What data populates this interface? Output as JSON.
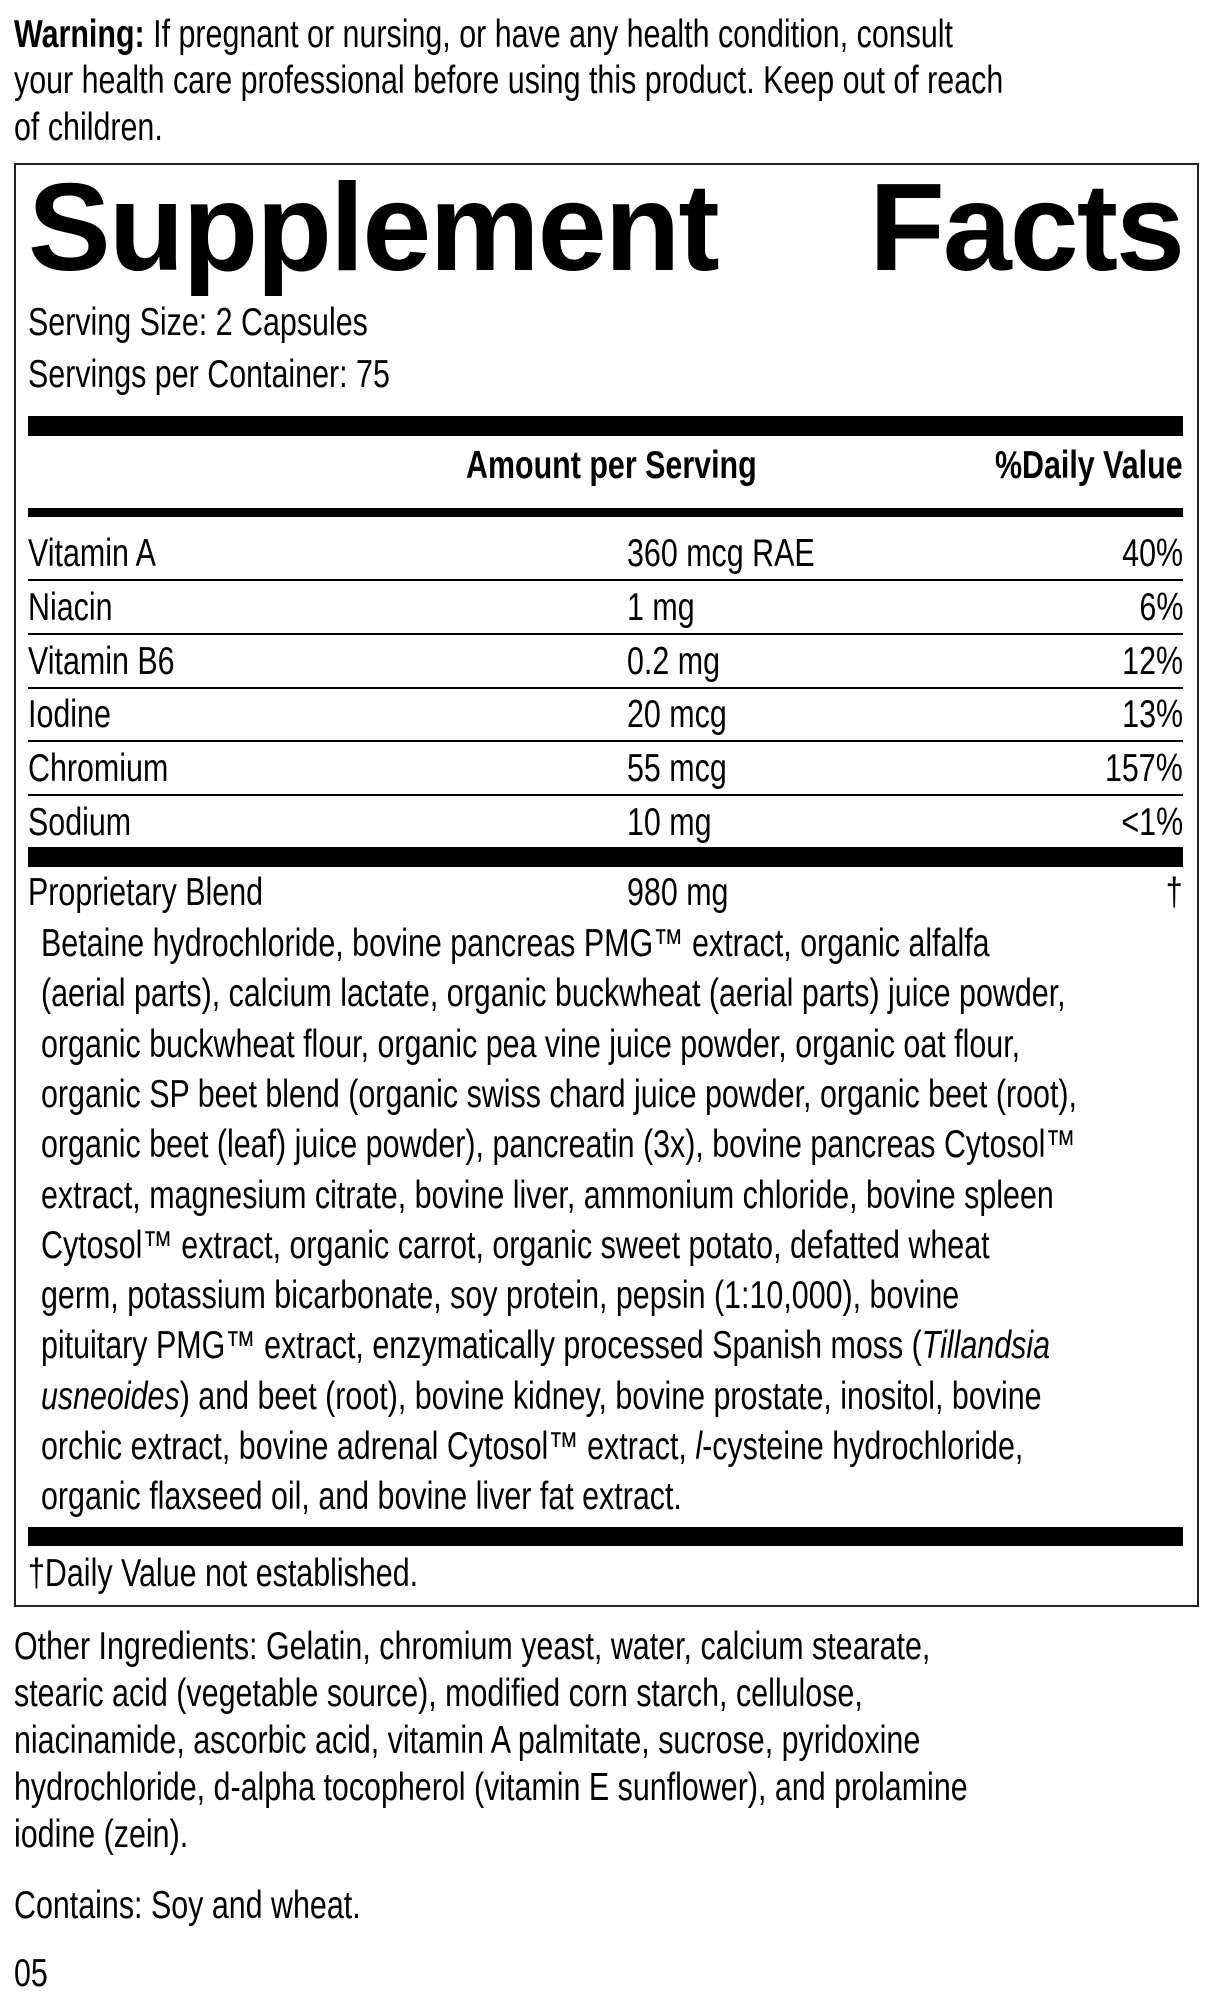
{
  "warning": {
    "label": "Warning:",
    "lines": [
      " If pregnant or nursing, or have any health condition, consult",
      "your health care professional before using this product. Keep out of reach",
      "of children."
    ]
  },
  "facts": {
    "title_left": "Supplement",
    "title_right": "Facts",
    "serving_size": "Serving Size: 2 Capsules",
    "servings_per_container": "Servings per Container: 75",
    "header_amount": "Amount per Serving",
    "header_dv": "%Daily Value",
    "rows": [
      {
        "name": "Vitamin A",
        "amount": "360 mcg RAE",
        "dv": "40%"
      },
      {
        "name": "Niacin",
        "amount": "1 mg",
        "dv": "6%"
      },
      {
        "name": "Vitamin B6",
        "amount": "0.2 mg",
        "dv": "12%"
      },
      {
        "name": "Iodine",
        "amount": "20 mcg",
        "dv": "13%"
      },
      {
        "name": "Chromium",
        "amount": "55 mcg",
        "dv": "157%"
      },
      {
        "name": "Sodium",
        "amount": "10 mg",
        "dv": "<1%"
      }
    ],
    "blend": {
      "name": "Proprietary Blend",
      "amount": "980 mg",
      "dv": "†"
    },
    "blend_lines": [
      [
        {
          "t": "Betaine hydrochloride, bovine pancreas PMG™ extract, organic alfalfa"
        }
      ],
      [
        {
          "t": "(aerial parts), calcium lactate, organic buckwheat (aerial parts) juice powder,"
        }
      ],
      [
        {
          "t": "organic buckwheat flour, organic pea vine juice powder, organic oat flour,"
        }
      ],
      [
        {
          "t": "organic SP beet blend (organic swiss chard juice powder, organic beet (root),"
        }
      ],
      [
        {
          "t": "organic beet (leaf) juice powder), pancreatin (3x), bovine pancreas Cytosol™"
        }
      ],
      [
        {
          "t": "extract, magnesium citrate, bovine liver, ammonium chloride, bovine spleen"
        }
      ],
      [
        {
          "t": "Cytosol™ extract, organic carrot, organic sweet potato, defatted wheat"
        }
      ],
      [
        {
          "t": "germ, potassium bicarbonate, soy protein, pepsin (1:10,000), bovine"
        }
      ],
      [
        {
          "t": "pituitary PMG™ extract, enzymatically processed Spanish moss ("
        },
        {
          "t": "Tillandsia",
          "i": true
        }
      ],
      [
        {
          "t": "usneoides",
          "i": true
        },
        {
          "t": ") and beet (root), bovine kidney, bovine prostate, inositol, bovine"
        }
      ],
      [
        {
          "t": "orchic extract, bovine adrenal Cytosol™ extract, "
        },
        {
          "t": "l",
          "i": true
        },
        {
          "t": "-cysteine hydrochloride,"
        }
      ],
      [
        {
          "t": "organic flaxseed oil, and bovine liver fat extract."
        }
      ]
    ],
    "footnote": "†Daily Value not established."
  },
  "other_ingredients": [
    "Other Ingredients: Gelatin, chromium yeast, water, calcium stearate,",
    "stearic acid (vegetable source), modified corn starch, cellulose,",
    "niacinamide, ascorbic acid, vitamin A palmitate, sucrose, pyridoxine",
    "hydrochloride, d-alpha tocopherol (vitamin E sunflower), and prolamine",
    "iodine (zein)."
  ],
  "contains": "Contains: Soy and wheat.",
  "code": "05"
}
